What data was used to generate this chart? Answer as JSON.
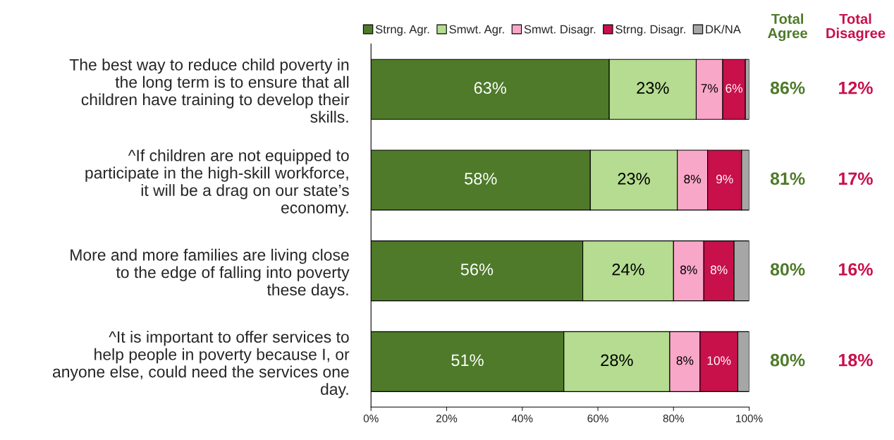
{
  "chart_data": {
    "type": "bar",
    "orientation": "horizontal",
    "stacked": true,
    "legend": "top",
    "grid": false,
    "categories": [
      "The best way to reduce child poverty in the long term is to ensure that all children have training to develop their skills.",
      "^If children are not equipped to participate in the high-skill workforce, it will be a drag on our state’s economy.",
      "More and more families are living close to the edge of falling into poverty these days.",
      "^It is important to offer services to help people in poverty because I, or anyone else, could need the services one day."
    ],
    "series": [
      {
        "name": "Strng. Agr.",
        "color": "#4e7a29",
        "values": [
          63,
          58,
          56,
          51
        ],
        "value_labels": [
          "63%",
          "58%",
          "56%",
          "51%"
        ]
      },
      {
        "name": "Smwt. Agr.",
        "color": "#b5dc90",
        "values": [
          23,
          23,
          24,
          28
        ],
        "value_labels": [
          "23%",
          "23%",
          "24%",
          "28%"
        ]
      },
      {
        "name": "Smwt. Disagr.",
        "color": "#f9a7c8",
        "values": [
          7,
          8,
          8,
          8
        ],
        "value_labels": [
          "7%",
          "8%",
          "8%",
          "8%"
        ]
      },
      {
        "name": "Strng. Disagr.",
        "color": "#c8104b",
        "values": [
          6,
          9,
          8,
          10
        ],
        "value_labels": [
          "6%",
          "9%",
          "8%",
          "10%"
        ]
      },
      {
        "name": "DK/NA",
        "color": "#a6a6a6",
        "values": [
          1,
          2,
          4,
          3
        ]
      }
    ],
    "xlim": [
      0,
      100
    ],
    "xticks": [
      {
        "value": 0,
        "label": "0%"
      },
      {
        "value": 20,
        "label": "20%"
      },
      {
        "value": 40,
        "label": "40%"
      },
      {
        "value": 60,
        "label": "60%"
      },
      {
        "value": 80,
        "label": "80%"
      },
      {
        "value": 100,
        "label": "100%"
      }
    ],
    "annotations": [
      "Total\nAgree",
      "Total\nDisagree",
      "86%",
      "12%",
      "81%",
      "17%",
      "80%",
      "16%",
      "80%",
      "18%"
    ]
  }
}
